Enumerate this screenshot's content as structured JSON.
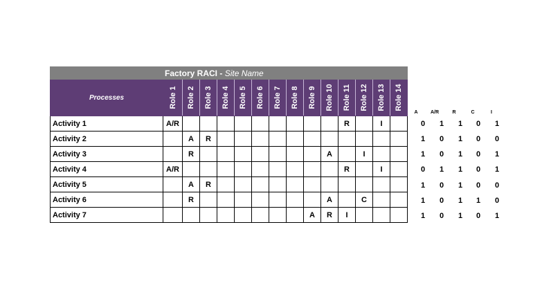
{
  "title": "Factory RACI",
  "title_separator": " - ",
  "subtitle": "Site Name",
  "processes_label": "Processes",
  "roles": [
    "Role 1",
    "Role 2",
    "Role 3",
    "Role 4",
    "Role 5",
    "Role 6",
    "Role 7",
    "Role 8",
    "Role 9",
    "Role 10",
    "Role 11",
    "Role 12",
    "Role 13",
    "Role 14"
  ],
  "activities": [
    {
      "name": "Activity 1",
      "cells": [
        "A/R",
        "",
        "",
        "",
        "",
        "",
        "",
        "",
        "",
        "",
        "R",
        "",
        "I",
        ""
      ]
    },
    {
      "name": "Activity 2",
      "cells": [
        "",
        "A",
        "R",
        "",
        "",
        "",
        "",
        "",
        "",
        "",
        "",
        "",
        "",
        ""
      ]
    },
    {
      "name": "Activity 3",
      "cells": [
        "",
        "R",
        "",
        "",
        "",
        "",
        "",
        "",
        "",
        "A",
        "",
        "I",
        "",
        ""
      ]
    },
    {
      "name": "Activity 4",
      "cells": [
        "A/R",
        "",
        "",
        "",
        "",
        "",
        "",
        "",
        "",
        "",
        "R",
        "",
        "I",
        ""
      ]
    },
    {
      "name": "Activity 5",
      "cells": [
        "",
        "A",
        "R",
        "",
        "",
        "",
        "",
        "",
        "",
        "",
        "",
        "",
        "",
        ""
      ]
    },
    {
      "name": "Activity 6",
      "cells": [
        "",
        "R",
        "",
        "",
        "",
        "",
        "",
        "",
        "",
        "A",
        "",
        "C",
        "",
        ""
      ]
    },
    {
      "name": "Activity 7",
      "cells": [
        "",
        "",
        "",
        "",
        "",
        "",
        "",
        "",
        "A",
        "R",
        "I",
        "",
        "",
        ""
      ]
    }
  ],
  "summary": {
    "headers": [
      "A",
      "A/R",
      "R",
      "C",
      "I"
    ],
    "rows": [
      [
        0,
        1,
        1,
        0,
        1
      ],
      [
        1,
        0,
        1,
        0,
        0
      ],
      [
        1,
        0,
        1,
        0,
        1
      ],
      [
        0,
        1,
        1,
        0,
        1
      ],
      [
        1,
        0,
        1,
        0,
        0
      ],
      [
        1,
        0,
        1,
        1,
        0
      ],
      [
        1,
        0,
        1,
        0,
        1
      ]
    ]
  }
}
